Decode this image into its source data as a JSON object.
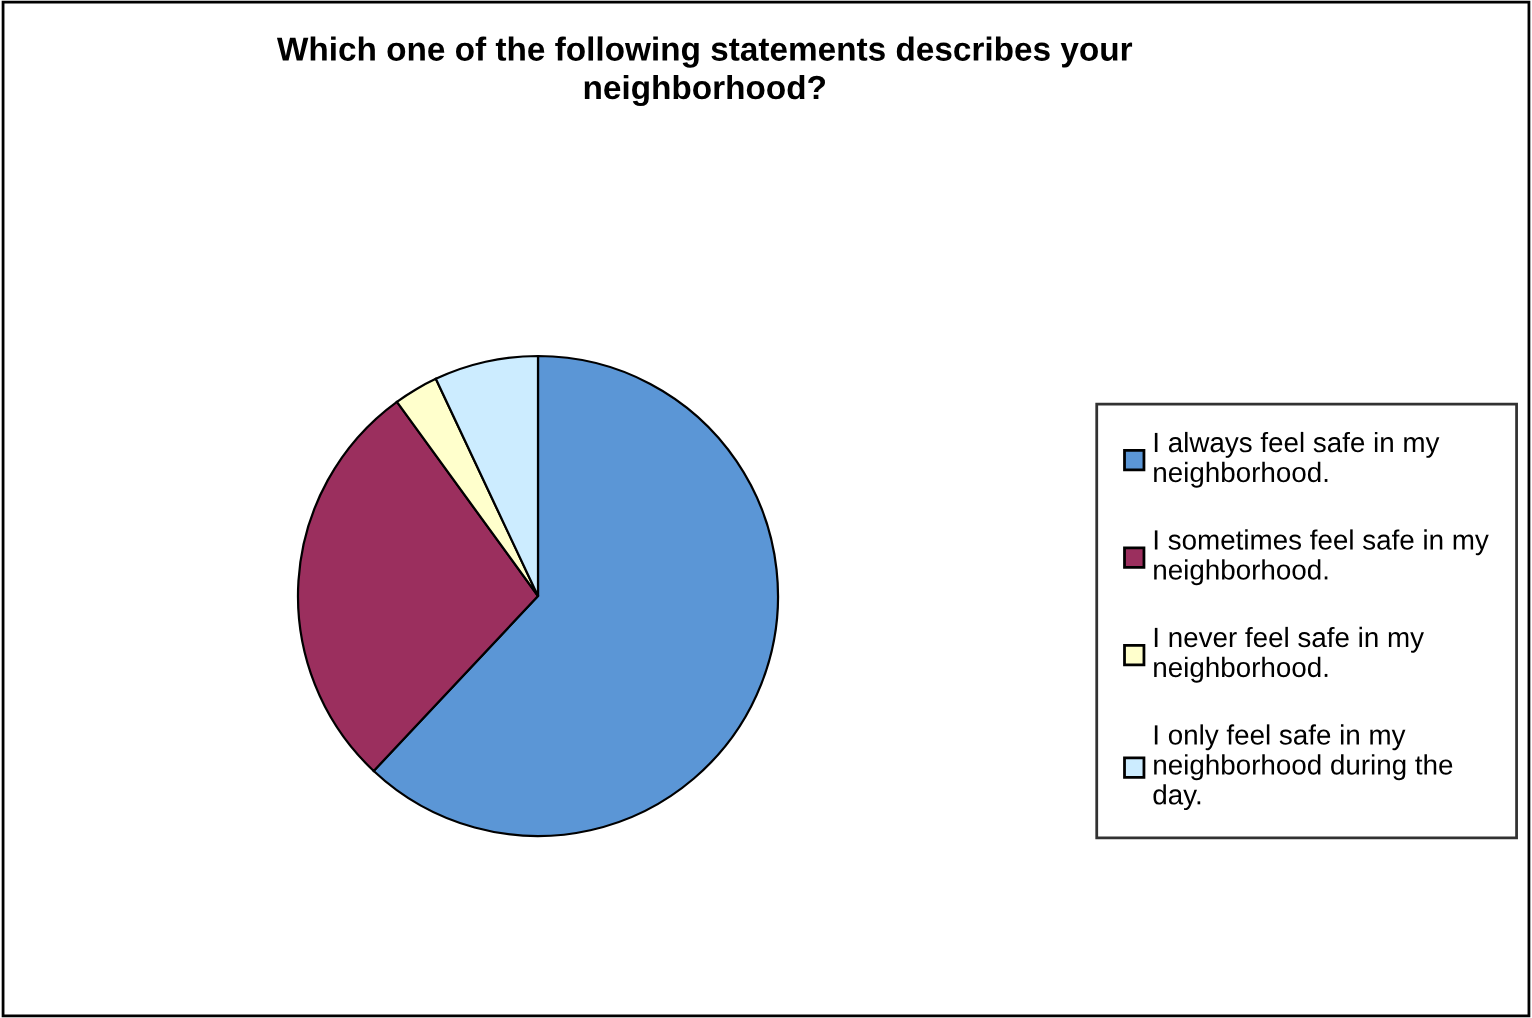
{
  "chart_data": {
    "type": "pie",
    "title": "Which one of the following statements describes your neighborhood?",
    "categories": [
      "I always feel safe in my neighborhood.",
      "I sometimes feel safe in my neighborhood.",
      "I never feel safe in my neighborhood.",
      "I only feel safe in my neighborhood during the day."
    ],
    "values": [
      62,
      28,
      3,
      7
    ],
    "colors": [
      "#5b96d6",
      "#9b2f5e",
      "#ffffcc",
      "#ccecff"
    ],
    "legend": "right"
  }
}
